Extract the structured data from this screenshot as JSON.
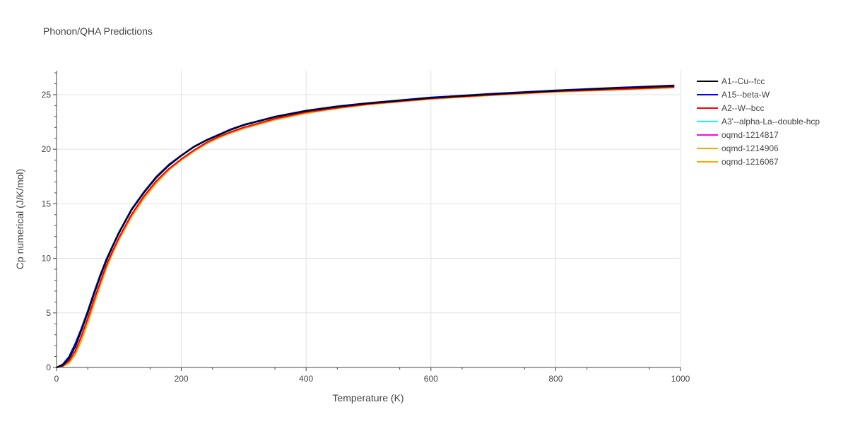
{
  "chart_data": {
    "type": "line",
    "title": "Phonon/QHA Predictions",
    "xlabel": "Temperature (K)",
    "ylabel": "Cp numerical (J/K/mol)",
    "xlim": [
      0,
      1000
    ],
    "ylim": [
      0,
      27.2
    ],
    "xticks": [
      0,
      200,
      400,
      600,
      800,
      1000
    ],
    "yticks": [
      0,
      5,
      10,
      15,
      20,
      25
    ],
    "grid": true,
    "legend_position": "top-right",
    "x": [
      0,
      10,
      20,
      30,
      40,
      50,
      60,
      70,
      80,
      90,
      100,
      120,
      140,
      160,
      180,
      200,
      220,
      240,
      260,
      280,
      300,
      350,
      400,
      450,
      500,
      600,
      700,
      800,
      900,
      990
    ],
    "series": [
      {
        "name": "A1--Cu--fcc",
        "color": "#000000",
        "values": [
          0,
          0.2,
          0.8,
          1.9,
          3.4,
          5.0,
          6.7,
          8.3,
          9.8,
          11.1,
          12.3,
          14.4,
          16.0,
          17.4,
          18.5,
          19.4,
          20.2,
          20.8,
          21.3,
          21.8,
          22.2,
          22.95,
          23.5,
          23.9,
          24.2,
          24.7,
          25.05,
          25.35,
          25.6,
          25.8
        ]
      },
      {
        "name": "A15--beta-W",
        "color": "#0000ff",
        "values": [
          0,
          0.3,
          1.0,
          2.2,
          3.6,
          5.2,
          6.9,
          8.5,
          9.95,
          11.2,
          12.4,
          14.5,
          16.1,
          17.5,
          18.6,
          19.45,
          20.25,
          20.85,
          21.35,
          21.85,
          22.25,
          23.0,
          23.55,
          23.95,
          24.25,
          24.75,
          25.1,
          25.4,
          25.65,
          25.85
        ]
      },
      {
        "name": "A2--W--bcc",
        "color": "#ff0000",
        "values": [
          0,
          0.15,
          0.6,
          1.5,
          2.9,
          4.5,
          6.2,
          7.8,
          9.4,
          10.7,
          11.9,
          14.0,
          15.7,
          17.1,
          18.2,
          19.1,
          19.9,
          20.6,
          21.15,
          21.6,
          22.0,
          22.8,
          23.4,
          23.8,
          24.15,
          24.65,
          25.0,
          25.3,
          25.5,
          25.7
        ]
      },
      {
        "name": "A3'--alpha-La--double-hcp",
        "color": "#00ffff",
        "values": [
          0,
          0.15,
          0.6,
          1.5,
          2.9,
          4.5,
          6.2,
          7.8,
          9.4,
          10.7,
          11.9,
          14.0,
          15.7,
          17.1,
          18.2,
          19.1,
          19.9,
          20.6,
          21.15,
          21.6,
          22.0,
          22.8,
          23.4,
          23.8,
          24.15,
          24.65,
          25.0,
          25.3,
          25.5,
          25.7
        ]
      },
      {
        "name": "oqmd-1214817",
        "color": "#ff00ff",
        "values": [
          0,
          0.15,
          0.6,
          1.5,
          2.9,
          4.5,
          6.2,
          7.8,
          9.4,
          10.7,
          11.9,
          14.0,
          15.7,
          17.1,
          18.2,
          19.1,
          19.9,
          20.6,
          21.15,
          21.6,
          22.0,
          22.8,
          23.4,
          23.8,
          24.15,
          24.65,
          25.0,
          25.3,
          25.5,
          25.7
        ]
      },
      {
        "name": "oqmd-1214906",
        "color": "#ffa500",
        "values": [
          0,
          0.1,
          0.4,
          1.2,
          2.5,
          4.1,
          5.8,
          7.5,
          9.1,
          10.5,
          11.7,
          13.8,
          15.5,
          16.9,
          18.1,
          19.0,
          19.8,
          20.5,
          21.05,
          21.5,
          21.9,
          22.7,
          23.3,
          23.75,
          24.1,
          24.6,
          24.95,
          25.25,
          25.45,
          25.65
        ]
      },
      {
        "name": "oqmd-1216067",
        "color": "#ffa500",
        "values": [
          0,
          0.1,
          0.4,
          1.2,
          2.5,
          4.1,
          5.8,
          7.5,
          9.1,
          10.5,
          11.7,
          13.8,
          15.5,
          16.9,
          18.1,
          19.0,
          19.8,
          20.5,
          21.05,
          21.5,
          21.9,
          22.7,
          23.3,
          23.75,
          24.1,
          24.6,
          24.95,
          25.25,
          25.45,
          25.65
        ]
      }
    ]
  }
}
